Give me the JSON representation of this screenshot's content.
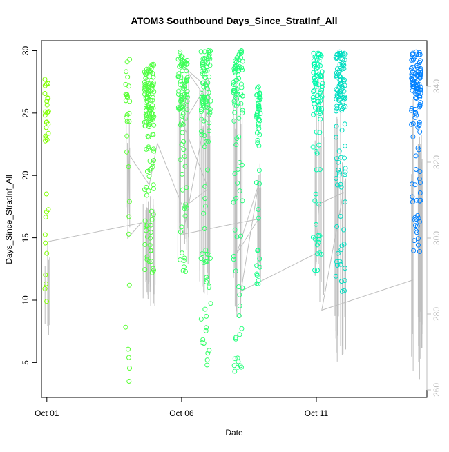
{
  "chart_data": {
    "type": "scatter",
    "title": "ATOM3 Southbound Days_Since_StratInf_All",
    "xlabel": "Date",
    "ylabel": "Days_Since_StratInf_All",
    "x_ticks": [
      "Oct 01",
      "Oct 06",
      "Oct 11"
    ],
    "y_ticks": [
      "5",
      "10",
      "15",
      "20",
      "25",
      "30"
    ],
    "y2_ticks": [
      "260",
      "280",
      "300",
      "320",
      "340"
    ],
    "xlim_days": [
      0.8,
      15.1
    ],
    "ylim": [
      2.2,
      30.8
    ],
    "y2lim": [
      258,
      352
    ],
    "grid": false,
    "colors": {
      "points_start": "#80ff00",
      "points_mid": "#00ffaa",
      "points_end": "#0080ff",
      "secondary_line": "#bebebe",
      "axis": "#000000",
      "right_axis": "#bebebe"
    },
    "clusters": [
      {
        "day": 1.0,
        "n": 34,
        "ymin": 9.9,
        "ymax": 27.7,
        "y2min": 272,
        "y2max": 302
      },
      {
        "day": 4.0,
        "n": 30,
        "ymin": 3.5,
        "ymax": 29.3,
        "y2min": 302,
        "y2max": 333
      },
      {
        "day": 4.8,
        "n": 140,
        "ymin": 12.2,
        "ymax": 28.9,
        "y2min": 282,
        "y2max": 312
      },
      {
        "day": 6.05,
        "n": 95,
        "ymin": 12.3,
        "ymax": 29.9,
        "y2min": 293,
        "y2max": 348
      },
      {
        "day": 6.9,
        "n": 110,
        "ymin": 4.8,
        "ymax": 30.0,
        "y2min": 280,
        "y2max": 345
      },
      {
        "day": 8.1,
        "n": 95,
        "ymin": 4.3,
        "ymax": 30.0,
        "y2min": 277,
        "y2max": 342
      },
      {
        "day": 8.85,
        "n": 55,
        "ymin": 11.3,
        "ymax": 27.1,
        "y2min": 289,
        "y2max": 320
      },
      {
        "day": 11.05,
        "n": 90,
        "ymin": 12.4,
        "ymax": 29.8,
        "y2min": 278,
        "y2max": 345
      },
      {
        "day": 11.9,
        "n": 110,
        "ymin": 10.7,
        "ymax": 29.9,
        "y2min": 266,
        "y2max": 335
      },
      {
        "day": 14.7,
        "n": 120,
        "ymin": 13.9,
        "ymax": 29.9,
        "y2min": 262,
        "y2max": 338
      }
    ],
    "secondary_path": [
      [
        1.0,
        299
      ],
      [
        4.5,
        304
      ],
      [
        4.0,
        300
      ],
      [
        4.05,
        322
      ],
      [
        4.8,
        314
      ],
      [
        5.1,
        325
      ],
      [
        6.05,
        308
      ],
      [
        7.0,
        313
      ],
      [
        6.05,
        330
      ],
      [
        6.9,
        340
      ],
      [
        6.1,
        345
      ],
      [
        7.0,
        336
      ],
      [
        6.05,
        301
      ],
      [
        8.1,
        304
      ],
      [
        8.85,
        305
      ],
      [
        8.05,
        296
      ],
      [
        8.85,
        314
      ],
      [
        8.2,
        286
      ],
      [
        11.0,
        296
      ],
      [
        11.1,
        309
      ],
      [
        12.0,
        312
      ],
      [
        11.2,
        281
      ],
      [
        14.6,
        289
      ]
    ]
  }
}
